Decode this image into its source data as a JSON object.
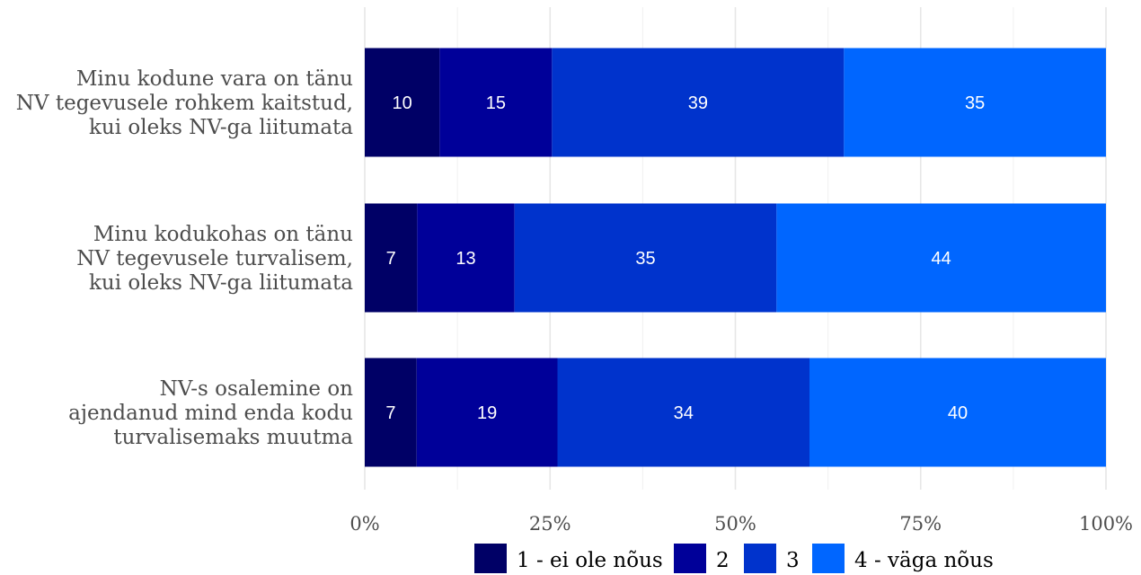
{
  "chart_data": {
    "type": "bar",
    "orientation": "horizontal",
    "stacked": true,
    "normalized": true,
    "categories": [
      [
        "Minu kodune vara on tänu",
        "NV tegevusele rohkem kaitstud,",
        "kui oleks NV-ga liitumata"
      ],
      [
        "Minu kodukohas on tänu",
        "NV tegevusele turvalisem,",
        "kui oleks NV-ga liitumata"
      ],
      [
        "NV-s osalemine on",
        "ajendanud mind enda kodu",
        "turvalisemaks muutma"
      ]
    ],
    "series": [
      {
        "name": "1 - ei ole nõus",
        "color": "#000066",
        "values": [
          10,
          7,
          7
        ]
      },
      {
        "name": "2",
        "color": "#000099",
        "values": [
          15,
          13,
          19
        ]
      },
      {
        "name": "3",
        "color": "#0033CC",
        "values": [
          39,
          35,
          34
        ]
      },
      {
        "name": "4 - väga nõus",
        "color": "#0066FF",
        "values": [
          35,
          44,
          40
        ]
      }
    ],
    "xticks": [
      "0%",
      "25%",
      "50%",
      "75%",
      "100%"
    ],
    "xlim": [
      0,
      100
    ],
    "grid": true,
    "legend_position": "bottom",
    "title": "",
    "xlabel": "",
    "ylabel": ""
  }
}
